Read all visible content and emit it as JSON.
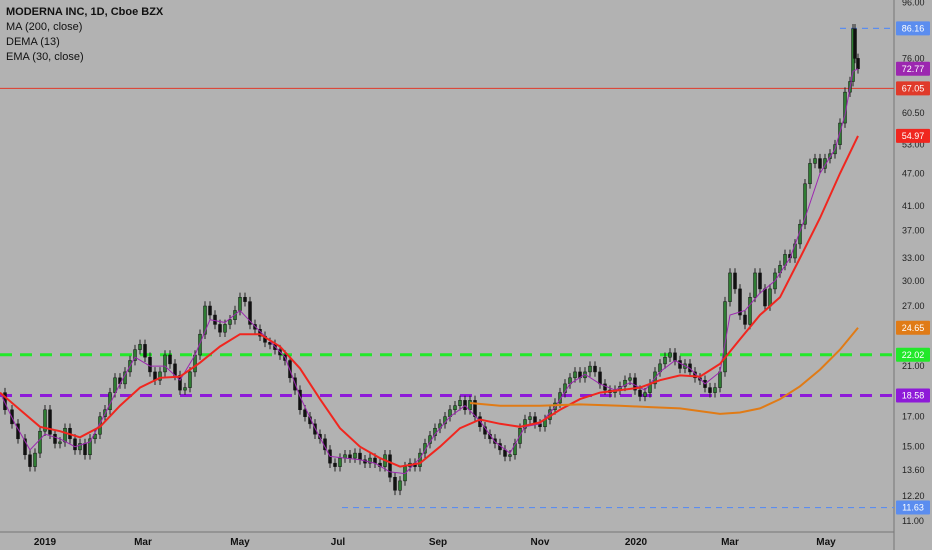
{
  "chart_data": {
    "type": "candlestick",
    "title": "MODERNA INC, 1D, Cboe BZX",
    "indicators": [
      "MA (200, close)",
      "DEMA (13)",
      "EMA (30, close)"
    ],
    "y_scale": "log",
    "ylim": [
      10.5,
      97
    ],
    "y_ticks": [
      "96.00",
      "86.16",
      "76.00",
      "72.77",
      "67.05",
      "60.50",
      "54.97",
      "53.00",
      "47.00",
      "41.00",
      "37.00",
      "33.00",
      "30.00",
      "27.00",
      "24.65",
      "22.02",
      "21.00",
      "18.58",
      "17.00",
      "15.00",
      "13.60",
      "12.20",
      "11.63",
      "11.00"
    ],
    "x_ticks": [
      "2019",
      "Mar",
      "May",
      "Jul",
      "Sep",
      "Nov",
      "2020",
      "Mar",
      "May"
    ],
    "price_series": [
      [
        0,
        18.8
      ],
      [
        5,
        17.5
      ],
      [
        12,
        16.5
      ],
      [
        18,
        15.5
      ],
      [
        25,
        14.5
      ],
      [
        30,
        13.8
      ],
      [
        35,
        14.6
      ],
      [
        40,
        16
      ],
      [
        45,
        17.5
      ],
      [
        50,
        15.8
      ],
      [
        55,
        15.2
      ],
      [
        60,
        15.3
      ],
      [
        65,
        16.2
      ],
      [
        70,
        15.5
      ],
      [
        75,
        14.8
      ],
      [
        80,
        15.2
      ],
      [
        85,
        14.5
      ],
      [
        90,
        15.5
      ],
      [
        95,
        15.8
      ],
      [
        100,
        17
      ],
      [
        105,
        17.5
      ],
      [
        110,
        18.8
      ],
      [
        115,
        20
      ],
      [
        120,
        19.5
      ],
      [
        125,
        20.5
      ],
      [
        130,
        21.5
      ],
      [
        135,
        22.5
      ],
      [
        140,
        23
      ],
      [
        145,
        21.8
      ],
      [
        150,
        20.5
      ],
      [
        155,
        19.8
      ],
      [
        160,
        20.5
      ],
      [
        165,
        22
      ],
      [
        170,
        21.2
      ],
      [
        175,
        20.2
      ],
      [
        180,
        19
      ],
      [
        185,
        19.2
      ],
      [
        190,
        20.5
      ],
      [
        195,
        22
      ],
      [
        200,
        24
      ],
      [
        205,
        27
      ],
      [
        210,
        26
      ],
      [
        215,
        25
      ],
      [
        220,
        24.2
      ],
      [
        225,
        25
      ],
      [
        230,
        25.5
      ],
      [
        235,
        26.5
      ],
      [
        240,
        28
      ],
      [
        245,
        27.5
      ],
      [
        250,
        25
      ],
      [
        255,
        24.5
      ],
      [
        260,
        23.8
      ],
      [
        265,
        23.2
      ],
      [
        270,
        23
      ],
      [
        275,
        22.5
      ],
      [
        280,
        22
      ],
      [
        285,
        21.5
      ],
      [
        290,
        20
      ],
      [
        295,
        19
      ],
      [
        300,
        17.5
      ],
      [
        305,
        17
      ],
      [
        310,
        16.5
      ],
      [
        315,
        15.8
      ],
      [
        320,
        15.5
      ],
      [
        325,
        14.8
      ],
      [
        330,
        14
      ],
      [
        335,
        13.8
      ],
      [
        340,
        14.3
      ],
      [
        345,
        14.5
      ],
      [
        350,
        14.3
      ],
      [
        355,
        14.6
      ],
      [
        360,
        14.2
      ],
      [
        365,
        14
      ],
      [
        370,
        14.3
      ],
      [
        375,
        14
      ],
      [
        380,
        13.8
      ],
      [
        385,
        14.5
      ],
      [
        390,
        13.2
      ],
      [
        395,
        12.5
      ],
      [
        400,
        13
      ],
      [
        405,
        13.8
      ],
      [
        410,
        14
      ],
      [
        415,
        13.8
      ],
      [
        420,
        14.6
      ],
      [
        425,
        15.2
      ],
      [
        430,
        15.7
      ],
      [
        435,
        16.2
      ],
      [
        440,
        16.5
      ],
      [
        445,
        17
      ],
      [
        450,
        17.5
      ],
      [
        455,
        17.8
      ],
      [
        460,
        18.2
      ],
      [
        465,
        17.5
      ],
      [
        470,
        18.2
      ],
      [
        475,
        17
      ],
      [
        480,
        16.3
      ],
      [
        485,
        15.8
      ],
      [
        490,
        15.5
      ],
      [
        495,
        15.2
      ],
      [
        500,
        14.8
      ],
      [
        505,
        14.4
      ],
      [
        510,
        14.5
      ],
      [
        515,
        15.2
      ],
      [
        520,
        16.2
      ],
      [
        525,
        16.8
      ],
      [
        530,
        17
      ],
      [
        535,
        16.5
      ],
      [
        540,
        16.3
      ],
      [
        545,
        16.8
      ],
      [
        550,
        17.5
      ],
      [
        555,
        18
      ],
      [
        560,
        18.8
      ],
      [
        565,
        19.5
      ],
      [
        570,
        20
      ],
      [
        575,
        20.5
      ],
      [
        580,
        20
      ],
      [
        585,
        20.5
      ],
      [
        590,
        21
      ],
      [
        595,
        20.5
      ],
      [
        600,
        19.5
      ],
      [
        605,
        19
      ],
      [
        610,
        18.8
      ],
      [
        615,
        19
      ],
      [
        620,
        19.3
      ],
      [
        625,
        19.8
      ],
      [
        630,
        20
      ],
      [
        635,
        19
      ],
      [
        640,
        18.5
      ],
      [
        645,
        18.8
      ],
      [
        650,
        19.5
      ],
      [
        655,
        20.5
      ],
      [
        660,
        21.2
      ],
      [
        665,
        21.8
      ],
      [
        670,
        22.2
      ],
      [
        675,
        21.5
      ],
      [
        680,
        20.8
      ],
      [
        685,
        21.2
      ],
      [
        690,
        20.5
      ],
      [
        695,
        20
      ],
      [
        700,
        19.8
      ],
      [
        705,
        19.2
      ],
      [
        710,
        18.8
      ],
      [
        715,
        19.2
      ],
      [
        720,
        20.5
      ],
      [
        725,
        27.5
      ],
      [
        730,
        31
      ],
      [
        735,
        29
      ],
      [
        740,
        26
      ],
      [
        745,
        25
      ],
      [
        750,
        28
      ],
      [
        755,
        31
      ],
      [
        760,
        29
      ],
      [
        765,
        27
      ],
      [
        770,
        29
      ],
      [
        775,
        31
      ],
      [
        780,
        32
      ],
      [
        785,
        33.5
      ],
      [
        790,
        33
      ],
      [
        795,
        35
      ],
      [
        800,
        38
      ],
      [
        805,
        45
      ],
      [
        810,
        49
      ],
      [
        815,
        50
      ],
      [
        820,
        48
      ],
      [
        825,
        50
      ],
      [
        830,
        51
      ],
      [
        835,
        53
      ],
      [
        840,
        58
      ],
      [
        845,
        66
      ],
      [
        850,
        69
      ],
      [
        853,
        86
      ],
      [
        855,
        76
      ],
      [
        858,
        72.77
      ]
    ],
    "series": [
      {
        "name": "DEMA (13)",
        "color": "#9c27b0",
        "values": [
          [
            0,
            18.8
          ],
          [
            15,
            16.5
          ],
          [
            30,
            14.8
          ],
          [
            45,
            15.8
          ],
          [
            60,
            15.5
          ],
          [
            75,
            15
          ],
          [
            90,
            15.3
          ],
          [
            105,
            17.2
          ],
          [
            120,
            19.5
          ],
          [
            135,
            21.8
          ],
          [
            150,
            21
          ],
          [
            165,
            21
          ],
          [
            180,
            19.8
          ],
          [
            195,
            22
          ],
          [
            210,
            25.5
          ],
          [
            225,
            25.2
          ],
          [
            240,
            26.5
          ],
          [
            255,
            24.8
          ],
          [
            270,
            23.3
          ],
          [
            285,
            21.8
          ],
          [
            300,
            18.5
          ],
          [
            315,
            16.2
          ],
          [
            330,
            14.4
          ],
          [
            345,
            14.3
          ],
          [
            360,
            14.2
          ],
          [
            375,
            14
          ],
          [
            390,
            13.5
          ],
          [
            405,
            13.4
          ],
          [
            420,
            14.3
          ],
          [
            435,
            15.8
          ],
          [
            450,
            17
          ],
          [
            465,
            17.8
          ],
          [
            480,
            16.7
          ],
          [
            495,
            15.3
          ],
          [
            510,
            14.6
          ],
          [
            525,
            16.3
          ],
          [
            540,
            16.5
          ],
          [
            555,
            17.7
          ],
          [
            570,
            19.5
          ],
          [
            585,
            20.3
          ],
          [
            600,
            19.5
          ],
          [
            615,
            19
          ],
          [
            630,
            19.6
          ],
          [
            645,
            19
          ],
          [
            660,
            20.5
          ],
          [
            675,
            21.5
          ],
          [
            690,
            20.8
          ],
          [
            705,
            19.5
          ],
          [
            720,
            20.5
          ],
          [
            730,
            26
          ],
          [
            745,
            26.5
          ],
          [
            760,
            28.5
          ],
          [
            775,
            30
          ],
          [
            790,
            33
          ],
          [
            805,
            39
          ],
          [
            820,
            47
          ],
          [
            835,
            52
          ],
          [
            845,
            60
          ],
          [
            853,
            72
          ],
          [
            858,
            72.77
          ]
        ]
      },
      {
        "name": "EMA (30, close)",
        "color": "#f0261f",
        "values": [
          [
            0,
            18.8
          ],
          [
            20,
            17.5
          ],
          [
            40,
            16.3
          ],
          [
            60,
            16
          ],
          [
            80,
            15.6
          ],
          [
            100,
            16.3
          ],
          [
            120,
            17.8
          ],
          [
            140,
            19.2
          ],
          [
            160,
            20
          ],
          [
            180,
            20.1
          ],
          [
            200,
            21.3
          ],
          [
            220,
            22.8
          ],
          [
            240,
            24
          ],
          [
            260,
            24
          ],
          [
            280,
            22.8
          ],
          [
            300,
            20.8
          ],
          [
            320,
            18.3
          ],
          [
            340,
            16.2
          ],
          [
            360,
            15
          ],
          [
            380,
            14.3
          ],
          [
            400,
            13.8
          ],
          [
            420,
            14
          ],
          [
            440,
            15
          ],
          [
            460,
            16.2
          ],
          [
            480,
            16.8
          ],
          [
            500,
            16.5
          ],
          [
            520,
            16.3
          ],
          [
            540,
            16.6
          ],
          [
            560,
            17.5
          ],
          [
            580,
            18.3
          ],
          [
            600,
            18.8
          ],
          [
            620,
            19
          ],
          [
            640,
            19.2
          ],
          [
            660,
            19.8
          ],
          [
            680,
            20.2
          ],
          [
            700,
            20.1
          ],
          [
            720,
            21.2
          ],
          [
            740,
            23.5
          ],
          [
            760,
            26
          ],
          [
            780,
            28
          ],
          [
            800,
            33
          ],
          [
            820,
            39
          ],
          [
            840,
            47
          ],
          [
            858,
            54.97
          ]
        ]
      },
      {
        "name": "MA (200, close)",
        "color": "#e07b16",
        "values": [
          [
            470,
            18
          ],
          [
            500,
            17.8
          ],
          [
            540,
            17.8
          ],
          [
            580,
            17.9
          ],
          [
            620,
            17.8
          ],
          [
            650,
            17.7
          ],
          [
            680,
            17.6
          ],
          [
            700,
            17.4
          ],
          [
            720,
            17.2
          ],
          [
            740,
            17.3
          ],
          [
            760,
            17.6
          ],
          [
            780,
            18.3
          ],
          [
            800,
            19.3
          ],
          [
            820,
            20.7
          ],
          [
            840,
            22.5
          ],
          [
            858,
            24.65
          ]
        ]
      }
    ],
    "annotations": [
      {
        "text": "86.16",
        "y": 86.16,
        "style": "dashed-level",
        "color": "#5b8def"
      },
      {
        "text": "72.77",
        "y": 72.77,
        "style": "badge",
        "color": "#9c27b0"
      },
      {
        "text": "67.05",
        "y": 67.05,
        "style": "solid-level",
        "color": "#e03a2a"
      },
      {
        "text": "54.97",
        "y": 54.97,
        "style": "badge",
        "color": "#f0261f"
      },
      {
        "text": "24.65",
        "y": 24.65,
        "style": "badge",
        "color": "#e07b16"
      },
      {
        "text": "22.02",
        "y": 22.02,
        "style": "dashed-level",
        "color": "#22e82a"
      },
      {
        "text": "18.58",
        "y": 18.58,
        "style": "dashed-level",
        "color": "#8e1ad8"
      },
      {
        "text": "11.63",
        "y": 11.63,
        "style": "dashed-level",
        "color": "#5b8def"
      }
    ]
  }
}
